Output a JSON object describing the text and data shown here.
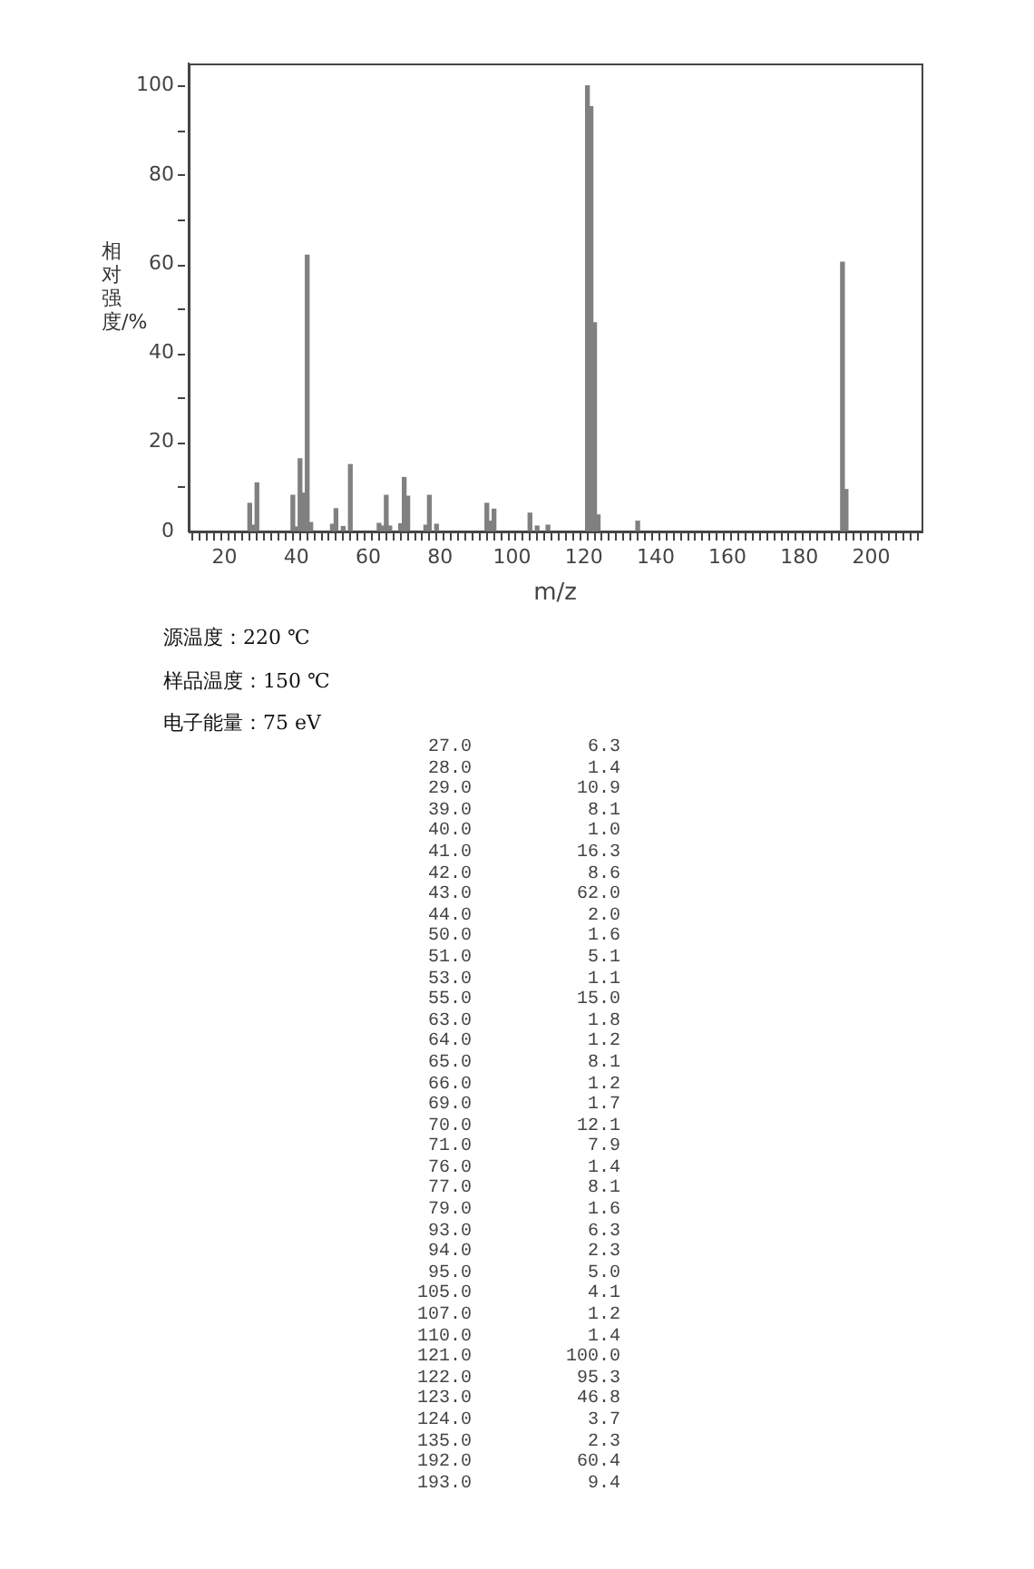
{
  "chart_data": [
    {
      "type": "bar",
      "xlabel": "m/z",
      "ylabel": "相对强度/%",
      "x": [
        27,
        28,
        29,
        39,
        40,
        41,
        42,
        43,
        44,
        50,
        51,
        53,
        55,
        63,
        64,
        65,
        66,
        69,
        70,
        71,
        76,
        77,
        79,
        93,
        94,
        95,
        105,
        107,
        110,
        121,
        122,
        123,
        124,
        135,
        192,
        193
      ],
      "values": [
        6.3,
        1.4,
        10.9,
        8.1,
        1.0,
        16.3,
        8.6,
        62.0,
        2.0,
        1.6,
        5.1,
        1.1,
        15.0,
        1.8,
        1.2,
        8.1,
        1.2,
        1.7,
        12.1,
        7.9,
        1.4,
        8.1,
        1.6,
        6.3,
        2.3,
        5.0,
        4.1,
        1.2,
        1.4,
        100.0,
        95.3,
        46.8,
        3.7,
        2.3,
        60.4,
        9.4
      ],
      "color": "#808080",
      "xlim": [
        10,
        214
      ],
      "xticks": [
        {
          "value": 12,
          "label": null
        },
        {
          "value": 14,
          "label": null
        },
        {
          "value": 16,
          "label": null
        },
        {
          "value": 18,
          "label": null
        },
        20,
        {
          "value": 22,
          "label": null
        },
        {
          "value": 24,
          "label": null
        },
        {
          "value": 26,
          "label": null
        },
        {
          "value": 28,
          "label": null
        },
        {
          "value": 30,
          "label": null
        },
        {
          "value": 32,
          "label": null
        },
        {
          "value": 34,
          "label": null
        },
        {
          "value": 36,
          "label": null
        },
        {
          "value": 38,
          "label": null
        },
        40,
        {
          "value": 42,
          "label": null
        },
        {
          "value": 44,
          "label": null
        },
        {
          "value": 46,
          "label": null
        },
        {
          "value": 48,
          "label": null
        },
        {
          "value": 50,
          "label": null
        },
        {
          "value": 52,
          "label": null
        },
        {
          "value": 54,
          "label": null
        },
        {
          "value": 56,
          "label": null
        },
        {
          "value": 58,
          "label": null
        },
        60,
        {
          "value": 62,
          "label": null
        },
        {
          "value": 64,
          "label": null
        },
        {
          "value": 66,
          "label": null
        },
        {
          "value": 68,
          "label": null
        },
        {
          "value": 70,
          "label": null
        },
        {
          "value": 72,
          "label": null
        },
        {
          "value": 74,
          "label": null
        },
        {
          "value": 76,
          "label": null
        },
        {
          "value": 78,
          "label": null
        },
        80,
        {
          "value": 82,
          "label": null
        },
        {
          "value": 84,
          "label": null
        },
        {
          "value": 86,
          "label": null
        },
        {
          "value": 88,
          "label": null
        },
        {
          "value": 90,
          "label": null
        },
        {
          "value": 92,
          "label": null
        },
        {
          "value": 94,
          "label": null
        },
        {
          "value": 96,
          "label": null
        },
        {
          "value": 98,
          "label": null
        },
        100,
        {
          "value": 102,
          "label": null
        },
        {
          "value": 104,
          "label": null
        },
        {
          "value": 106,
          "label": null
        },
        {
          "value": 108,
          "label": null
        },
        {
          "value": 110,
          "label": null
        },
        {
          "value": 112,
          "label": null
        },
        {
          "value": 114,
          "label": null
        },
        {
          "value": 116,
          "label": null
        },
        {
          "value": 118,
          "label": null
        },
        120,
        {
          "value": 122,
          "label": null
        },
        {
          "value": 124,
          "label": null
        },
        {
          "value": 126,
          "label": null
        },
        {
          "value": 128,
          "label": null
        },
        {
          "value": 130,
          "label": null
        },
        {
          "value": 132,
          "label": null
        },
        {
          "value": 134,
          "label": null
        },
        {
          "value": 136,
          "label": null
        },
        {
          "value": 138,
          "label": null
        },
        140,
        {
          "value": 142,
          "label": null
        },
        {
          "value": 144,
          "label": null
        },
        {
          "value": 146,
          "label": null
        },
        {
          "value": 148,
          "label": null
        },
        {
          "value": 150,
          "label": null
        },
        {
          "value": 152,
          "label": null
        },
        {
          "value": 154,
          "label": null
        },
        {
          "value": 156,
          "label": null
        },
        {
          "value": 158,
          "label": null
        },
        160,
        {
          "value": 162,
          "label": null
        },
        {
          "value": 164,
          "label": null
        },
        {
          "value": 166,
          "label": null
        },
        {
          "value": 168,
          "label": null
        },
        {
          "value": 170,
          "label": null
        },
        {
          "value": 172,
          "label": null
        },
        {
          "value": 174,
          "label": null
        },
        {
          "value": 176,
          "label": null
        },
        {
          "value": 178,
          "label": null
        },
        180,
        {
          "value": 182,
          "label": null
        },
        {
          "value": 184,
          "label": null
        },
        {
          "value": 186,
          "label": null
        },
        {
          "value": 188,
          "label": null
        },
        {
          "value": 190,
          "label": null
        },
        {
          "value": 192,
          "label": null
        },
        {
          "value": 194,
          "label": null
        },
        {
          "value": 196,
          "label": null
        },
        {
          "value": 198,
          "label": null
        },
        200,
        {
          "value": 202,
          "label": null
        },
        {
          "value": 204,
          "label": null
        },
        {
          "value": 206,
          "label": null
        },
        {
          "value": 208,
          "label": null
        },
        {
          "value": 210,
          "label": null
        },
        {
          "value": 212,
          "label": null
        }
      ],
      "ylim": [
        0,
        105
      ],
      "yticks": [
        0,
        {
          "value": 10,
          "label": null
        },
        20,
        {
          "value": 30,
          "label": null
        },
        40,
        {
          "value": 50,
          "label": null
        },
        60,
        {
          "value": 70,
          "label": null
        },
        80,
        {
          "value": 90,
          "label": null
        },
        100
      ],
      "grid": false,
      "legend": false,
      "annotations": [
        "源温度：220 ℃",
        "样品温度：150 ℃",
        "电子能量：75 eV"
      ]
    },
    {
      "type": "other",
      "categories": [
        "27.0",
        "28.0",
        "29.0",
        "39.0",
        "40.0",
        "41.0",
        "42.0",
        "43.0",
        "44.0",
        "50.0",
        "51.0",
        "53.0",
        "55.0",
        "63.0",
        "64.0",
        "65.0",
        "66.0",
        "69.0",
        "70.0",
        "71.0",
        "76.0",
        "77.0",
        "79.0",
        "93.0",
        "94.0",
        "95.0",
        "105.0",
        "107.0",
        "110.0",
        "121.0",
        "122.0",
        "123.0",
        "124.0",
        "135.0",
        "192.0",
        "193.0"
      ],
      "value_labels": [
        "6.3",
        "1.4",
        "10.9",
        "8.1",
        "1.0",
        "16.3",
        "8.6",
        "62.0",
        "2.0",
        "1.6",
        "5.1",
        "1.1",
        "15.0",
        "1.8",
        "1.2",
        "8.1",
        "1.2",
        "1.7",
        "12.1",
        "7.9",
        "1.4",
        "8.1",
        "1.6",
        "6.3",
        "2.3",
        "5.0",
        "4.1",
        "1.2",
        "1.4",
        "100.0",
        "95.3",
        "46.8",
        "3.7",
        "2.3",
        "60.4",
        "9.4"
      ]
    }
  ]
}
